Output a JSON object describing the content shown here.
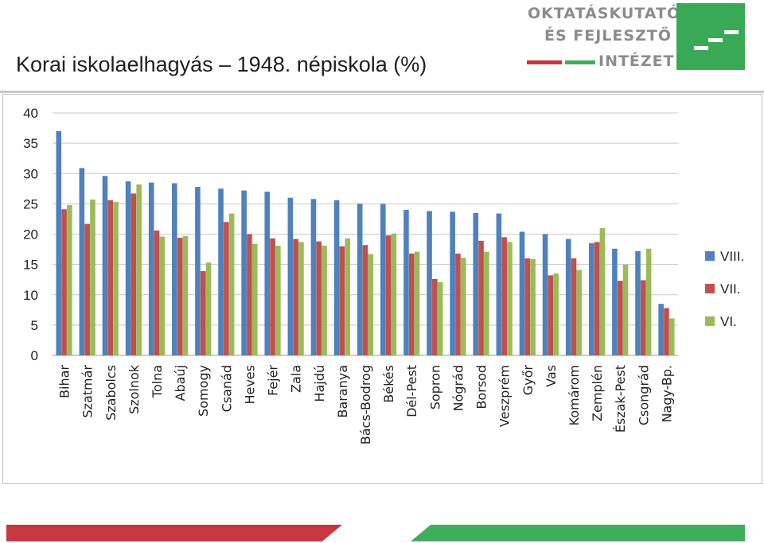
{
  "slide": {
    "title": "Korai iskolaelhagyás – 1948. népiskola (%)"
  },
  "logo": {
    "line1": "OKTATÁSKUTATÓ",
    "line2": "ÉS FEJLESZTŐ",
    "line3": "INTÉZET"
  },
  "colors": {
    "accent_red": "#c8373f",
    "accent_green": "#3fae5a",
    "series_viii": "#4f81bd",
    "series_vii": "#c0504d",
    "series_vi": "#9bbb59"
  },
  "chart_data": {
    "type": "bar",
    "title": "",
    "xlabel": "",
    "ylabel": "",
    "ylim": [
      0,
      40
    ],
    "yticks": [
      0,
      5,
      10,
      15,
      20,
      25,
      30,
      35,
      40
    ],
    "grid": true,
    "legend_position": "right",
    "categories": [
      "Bihar",
      "Szatmár",
      "Szabolcs",
      "Szolnok",
      "Tolna",
      "Abaúj",
      "Somogy",
      "Csanád",
      "Heves",
      "Fejér",
      "Zala",
      "Hajdú",
      "Baranya",
      "Bács-Bodrog",
      "Békés",
      "Dél-Pest",
      "Sopron",
      "Nógrád",
      "Borsod",
      "Veszprém",
      "Győr",
      "Vas",
      "Komárom",
      "Zemplén",
      "Észak-Pest",
      "Csongrád",
      "Nagy-Bp."
    ],
    "series": [
      {
        "name": "VIII.",
        "color": "#4f81bd",
        "values": [
          37.0,
          30.9,
          29.6,
          28.7,
          28.5,
          28.4,
          27.8,
          27.5,
          27.2,
          27.0,
          26.0,
          25.8,
          25.6,
          25.0,
          25.0,
          24.0,
          23.8,
          23.7,
          23.5,
          23.4,
          20.4,
          20.0,
          19.2,
          18.5,
          17.6,
          17.2,
          8.5
        ]
      },
      {
        "name": "VII.",
        "color": "#c0504d",
        "values": [
          24.1,
          21.7,
          25.6,
          26.7,
          20.6,
          19.4,
          13.9,
          22.0,
          20.0,
          19.3,
          19.2,
          18.8,
          18.0,
          18.2,
          19.8,
          16.8,
          12.6,
          16.8,
          18.9,
          19.5,
          16.0,
          13.2,
          16.0,
          18.7,
          12.3,
          12.4,
          7.8
        ]
      },
      {
        "name": "VI.",
        "color": "#9bbb59",
        "values": [
          24.8,
          25.7,
          25.3,
          28.2,
          19.6,
          19.7,
          15.3,
          23.4,
          18.4,
          18.1,
          18.7,
          18.1,
          19.3,
          16.7,
          20.1,
          17.1,
          12.1,
          16.1,
          17.1,
          18.7,
          15.9,
          13.5,
          14.1,
          21.0,
          15.0,
          17.6,
          6.1
        ]
      }
    ]
  }
}
